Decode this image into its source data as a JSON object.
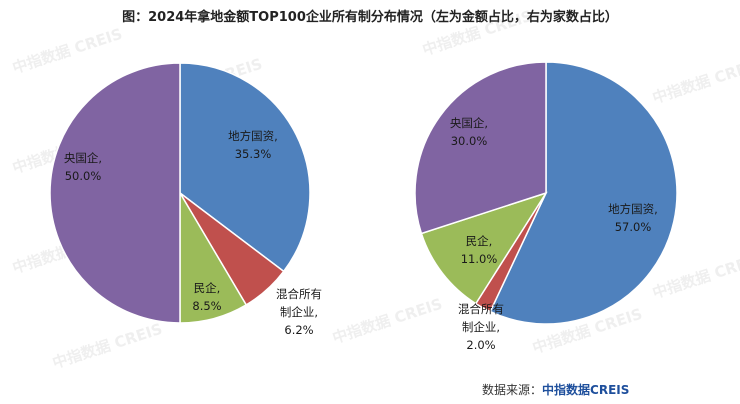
{
  "title": "图：2024年拿地金额TOP100企业所有制分布情况（左为金额占比，右为家数占比）",
  "watermark": "中指数据 CREIS",
  "source": {
    "prefix": "数据来源：",
    "brand": "中指数据CREIS"
  },
  "colors": {
    "local_state": "#4f81bd",
    "mixed": "#c0504d",
    "private": "#9bbb59",
    "central_state": "#8064a2"
  },
  "chart_data": [
    {
      "type": "pie",
      "title": "",
      "slices": [
        {
          "key": "local_state",
          "name": "地方国资",
          "value": 35.3,
          "label_value": "35.3%"
        },
        {
          "key": "mixed",
          "name": "混合所有制企业",
          "value": 6.2,
          "label_value": "6.2%"
        },
        {
          "key": "private",
          "name": "民企",
          "value": 8.5,
          "label_value": "8.5%"
        },
        {
          "key": "central_state",
          "name": "央国企",
          "value": 50.0,
          "label_value": "50.0%"
        }
      ],
      "labels": [
        {
          "lines": [
            "地方国资,",
            "35.3%"
          ]
        },
        {
          "lines": [
            "混合所有",
            "制企业,",
            "6.2%"
          ]
        },
        {
          "lines": [
            "民企,",
            "8.5%"
          ]
        },
        {
          "lines": [
            "央国企,",
            "50.0%"
          ]
        }
      ]
    },
    {
      "type": "pie",
      "title": "",
      "slices": [
        {
          "key": "local_state",
          "name": "地方国资",
          "value": 57.0,
          "label_value": "57.0%"
        },
        {
          "key": "mixed",
          "name": "混合所有制企业",
          "value": 2.0,
          "label_value": "2.0%"
        },
        {
          "key": "private",
          "name": "民企",
          "value": 11.0,
          "label_value": "11.0%"
        },
        {
          "key": "central_state",
          "name": "央国企",
          "value": 30.0,
          "label_value": "30.0%"
        }
      ],
      "labels": [
        {
          "lines": [
            "地方国资,",
            "57.0%"
          ]
        },
        {
          "lines": [
            "混合所有",
            "制企业,",
            "2.0%"
          ]
        },
        {
          "lines": [
            "民企,",
            "11.0%"
          ]
        },
        {
          "lines": [
            "央国企,",
            "30.0%"
          ]
        }
      ]
    }
  ]
}
